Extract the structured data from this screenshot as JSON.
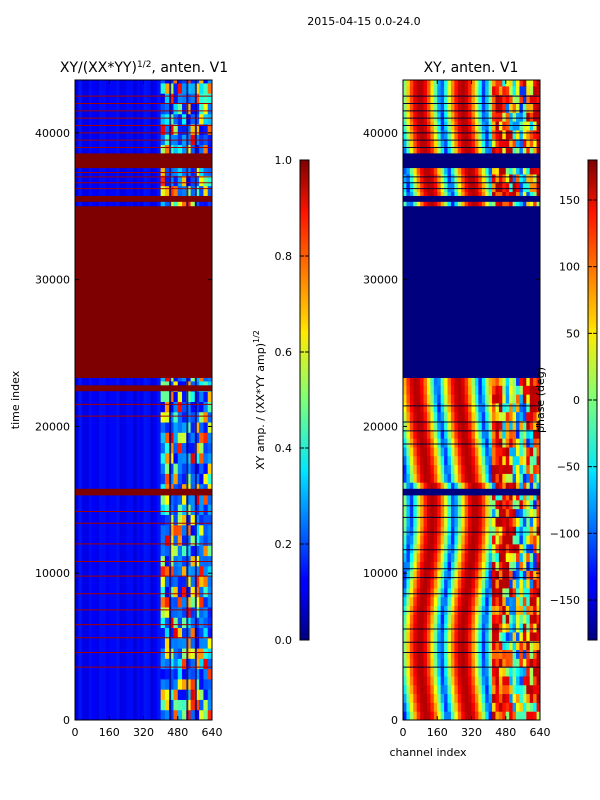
{
  "suptitle": "2015-04-15 0.0-24.0",
  "chart_data": [
    {
      "type": "heatmap",
      "panel": "amplitude-ratio",
      "title_base": "XY/(XX*YY)",
      "title_exp": "1/2",
      "title_suffix": ", anten. V1",
      "xlim": [
        0,
        640
      ],
      "ylim": [
        0,
        43600
      ],
      "xticks": [
        "0",
        "160",
        "320",
        "480",
        "640"
      ],
      "yticks": [
        "0",
        "10000",
        "20000",
        "30000",
        "40000"
      ],
      "ylabel": "time index",
      "colormap": "jet",
      "colorbar": {
        "label_base": "XY amp. / (XX*YY amp)",
        "label_exp": "1/2",
        "range": [
          0.0,
          1.0
        ],
        "ticks": [
          "0.0",
          "0.2",
          "0.4",
          "0.6",
          "0.8",
          "1.0"
        ]
      },
      "background_level": 0.1,
      "saturated_bands": [
        [
          15300,
          15750
        ],
        [
          22400,
          22800
        ],
        [
          23300,
          35000
        ],
        [
          35300,
          35700
        ],
        [
          37600,
          38600
        ]
      ],
      "thin_lines": [
        3600,
        4600,
        5600,
        6500,
        7500,
        8600,
        9800,
        10800,
        12000,
        13400,
        14200,
        20700,
        21500,
        36200,
        36600,
        37000,
        37300,
        39000,
        39500,
        40000,
        40500,
        41000,
        41500,
        42000,
        42500
      ],
      "active_region": [
        400,
        640
      ]
    },
    {
      "type": "heatmap",
      "panel": "phase",
      "title": "XY, anten. V1",
      "xlim": [
        0,
        640
      ],
      "ylim": [
        0,
        43600
      ],
      "xticks": [
        "0",
        "160",
        "320",
        "480",
        "640"
      ],
      "yticks": [
        "0",
        "10000",
        "20000",
        "30000",
        "40000"
      ],
      "xlabel": "channel index",
      "colormap": "jet",
      "colorbar": {
        "label": "phase (deg)",
        "range": [
          -180,
          180
        ],
        "ticks": [
          "−150",
          "−100",
          "−50",
          "0",
          "50",
          "100",
          "150"
        ]
      },
      "low_bands": [
        [
          15300,
          15750
        ],
        [
          23300,
          35000
        ],
        [
          35300,
          35700
        ],
        [
          37600,
          38600
        ]
      ],
      "thin_lines": [
        3600,
        4600,
        5300,
        6200,
        7400,
        8600,
        9700,
        10300,
        11600,
        12800,
        13800,
        14600,
        18800,
        19700,
        20300,
        21400,
        36200,
        36600,
        37000,
        39000,
        39500,
        40000,
        40500,
        41000,
        41500,
        42000,
        42500
      ]
    }
  ]
}
